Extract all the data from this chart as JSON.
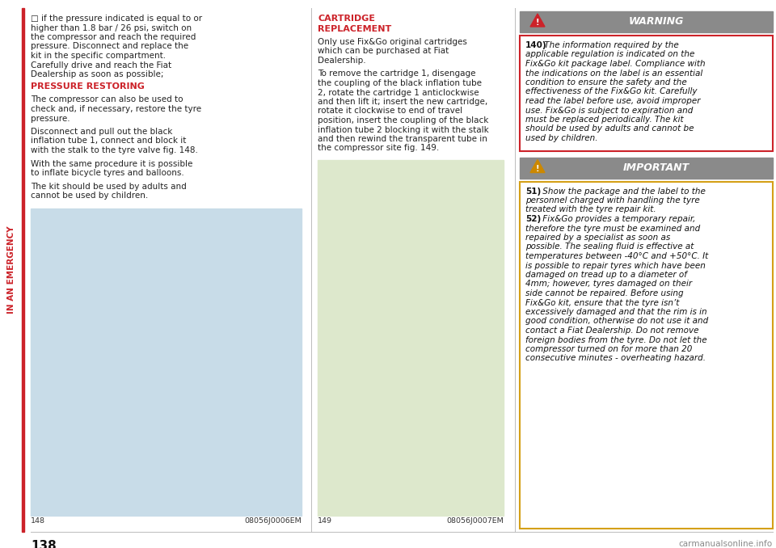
{
  "page_number": "138",
  "sidebar_text": "IN AN EMERGENCY",
  "sidebar_color": "#cc2229",
  "background_color": "#ffffff",
  "col1": {
    "bullet_text": "□ if the pressure indicated is equal to or\nhigher than 1.8 bar / 26 psi, switch on\nthe compressor and reach the required\npressure. Disconnect and replace the\nkit in the specific compartment.\nCarefully drive and reach the Fiat\nDealership as soon as possible;",
    "heading": "PRESSURE RESTORING",
    "heading_color": "#cc2229",
    "body1": "The compressor can also be used to\ncheck and, if necessary, restore the tyre\npressure.",
    "body2": "Disconnect and pull out the black\ninflation tube 1, connect and block it\nwith the stalk to the tyre valve fig. 148.",
    "body3": "With the same procedure it is possible\nto inflate bicycle tyres and balloons.",
    "body4": "The kit should be used by adults and\ncannot be used by children.",
    "fig_label": "148",
    "fig_code": "08056J0006EM",
    "fig_bg": "#c8dce8"
  },
  "col2": {
    "heading_line1": "CARTRIDGE",
    "heading_line2": "REPLACEMENT",
    "heading_color": "#cc2229",
    "body1": "Only use Fix&Go original cartridges\nwhich can be purchased at Fiat\nDealership.",
    "body2": "To remove the cartridge 1, disengage\nthe coupling of the black inflation tube\n2, rotate the cartridge 1 anticlockwise\nand then lift it; insert the new cartridge,\nrotate it clockwise to end of travel\nposition, insert the coupling of the black\ninflation tube 2 blocking it with the stalk\nand then rewind the transparent tube in\nthe compressor site fig. 149.",
    "fig_label": "149",
    "fig_code": "08056J0007EM",
    "fig_bg": "#dde8cc"
  },
  "col3": {
    "warning_header": "WARNING",
    "warning_header_bg": "#8a8a8a",
    "warning_text_bg": "#ffffff",
    "warning_border": "#cc2229",
    "warning_num": "140)",
    "warning_body": " The information required by the\napplicable regulation is indicated on the\nFix&Go kit package label. Compliance with\nthe indications on the label is an essential\ncondition to ensure the safety and the\neffectiveness of the Fix&Go kit. Carefully\nread the label before use, avoid improper\nuse. Fix&Go is subject to expiration and\nmust be replaced periodically. The kit\nshould be used by adults and cannot be\nused by children.",
    "important_header": "IMPORTANT",
    "important_header_bg": "#8a8a8a",
    "important_text_bg": "#ffffff",
    "important_border": "#d4a017",
    "important_num1": "51)",
    "important_body1": " Show the package and the label to the\npersonnel charged with handling the tyre\ntreated with the tyre repair kit.",
    "important_num2": "52)",
    "important_body2": " Fix&Go provides a temporary repair,\ntherefore the tyre must be examined and\nrepaired by a specialist as soon as\npossible. The sealing fluid is effective at\ntemperatures between -40°C and +50°C. It\nis possible to repair tyres which have been\ndamaged on tread up to a diameter of\n4mm; however, tyres damaged on their\nside cannot be repaired. Before using\nFix&Go kit, ensure that the tyre isn’t\nexcessively damaged and that the rim is in\ngood condition, otherwise do not use it and\ncontact a Fiat Dealership. Do not remove\nforeign bodies from the tyre. Do not let the\ncompressor turned on for more than 20\nconsecutive minutes - overheating hazard."
  },
  "divider_color": "#bbbbbb",
  "footer_color": "#888888",
  "footer_right": "carmanualsonline.info",
  "warn_tri_color": "#cc2229",
  "imp_tri_color": "#cc8800"
}
